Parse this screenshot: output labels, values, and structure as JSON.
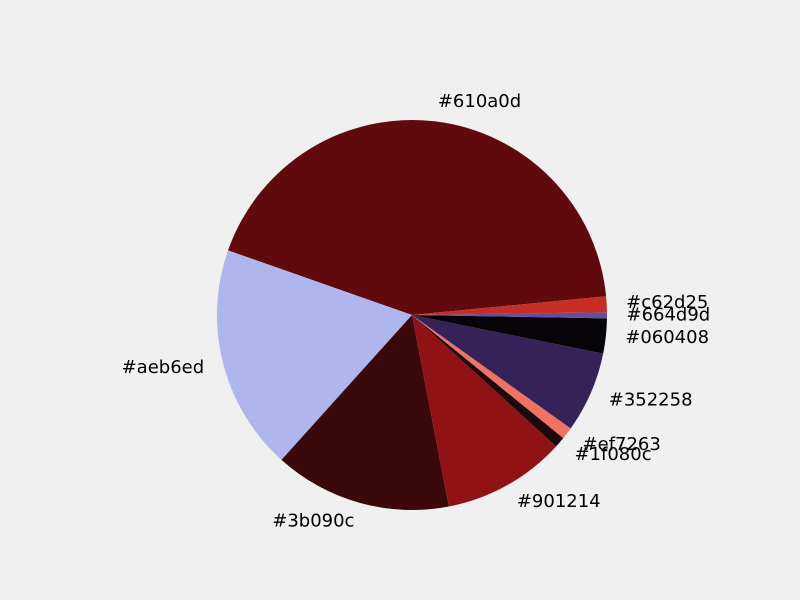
{
  "chart_data": {
    "type": "pie",
    "title": "",
    "start_angle_deg": 5.5,
    "direction": "counterclockwise",
    "slices": [
      {
        "label": "#610a0d",
        "color": "#610a0d",
        "value": 43.1
      },
      {
        "label": "#aeb6ed",
        "color": "#aeb6ed",
        "value": 18.7
      },
      {
        "label": "#3b090c",
        "color": "#3b090c",
        "value": 14.7
      },
      {
        "label": "#901214",
        "color": "#901214",
        "value": 10.2
      },
      {
        "label": "#1f080c",
        "color": "#1f080c",
        "value": 0.9
      },
      {
        "label": "#ef7263",
        "color": "#ef7263",
        "value": 1.0
      },
      {
        "label": "#352258",
        "color": "#352258",
        "value": 6.7
      },
      {
        "label": "#060408",
        "color": "#060408",
        "value": 2.9
      },
      {
        "label": "#664d9d",
        "color": "#664d9d",
        "value": 0.5
      },
      {
        "label": "#c62d25",
        "color": "#c62d25",
        "value": 1.3
      }
    ]
  }
}
